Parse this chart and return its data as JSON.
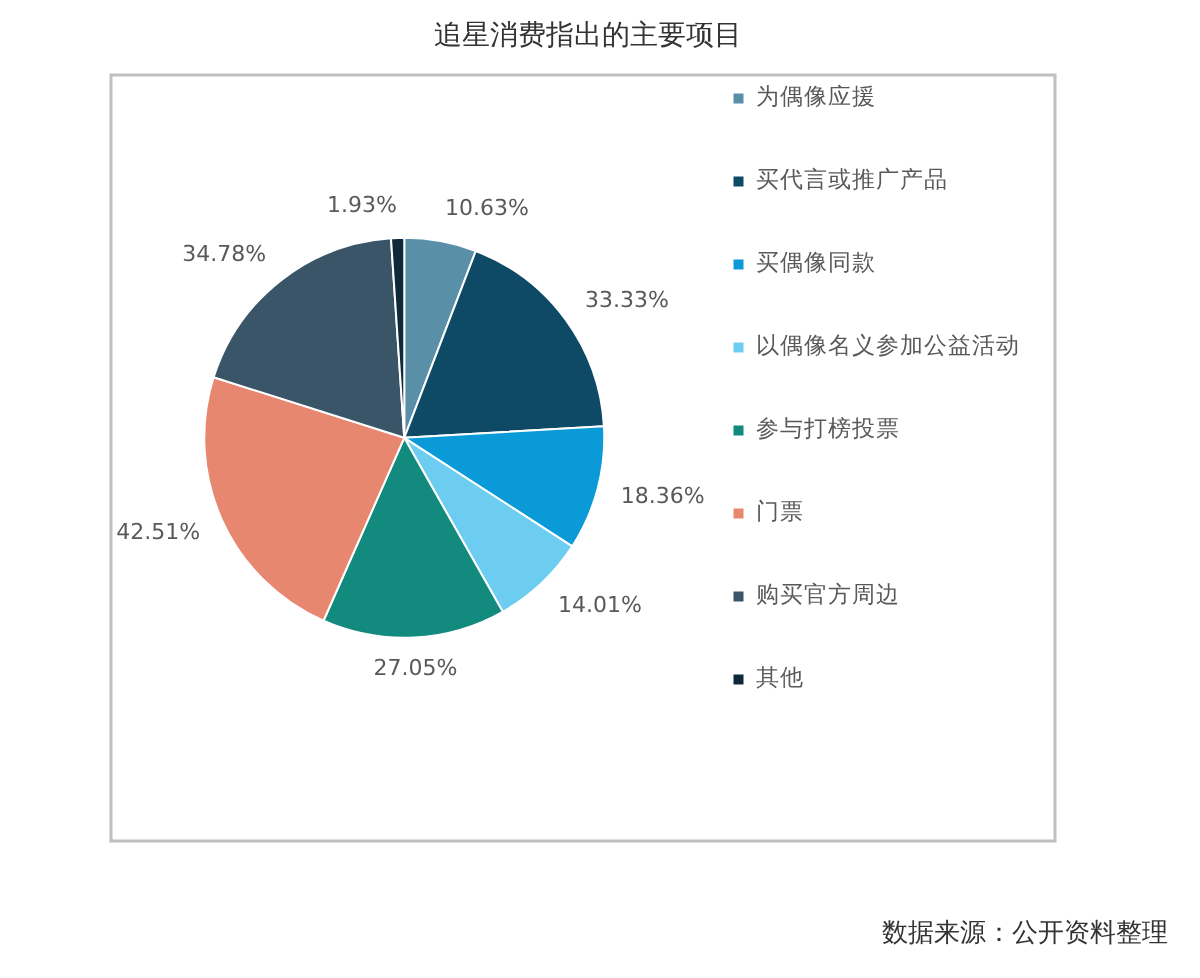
{
  "chart_data": {
    "type": "pie",
    "title": "追星消费指出的主要项目",
    "categories": [
      "为偶像应援",
      "买代言或推广产品",
      "买偶像同款",
      "以偶像名义参加公益活动",
      "参与打榜投票",
      "门票",
      "购买官方周边",
      "其他"
    ],
    "values": [
      10.63,
      33.33,
      18.36,
      14.01,
      27.05,
      42.51,
      34.78,
      1.93
    ],
    "value_labels": [
      "10.63%",
      "33.33%",
      "18.36%",
      "14.01%",
      "27.05%",
      "42.51%",
      "34.78%",
      "1.93%"
    ],
    "colors": [
      "#5a8fa8",
      "#0e4a66",
      "#0a9ad8",
      "#6ccdf0",
      "#138a7e",
      "#e8876f",
      "#3a5568",
      "#0e2a3a"
    ],
    "legend": "right",
    "annotations": [
      "数据来源：公开资料整理"
    ]
  }
}
